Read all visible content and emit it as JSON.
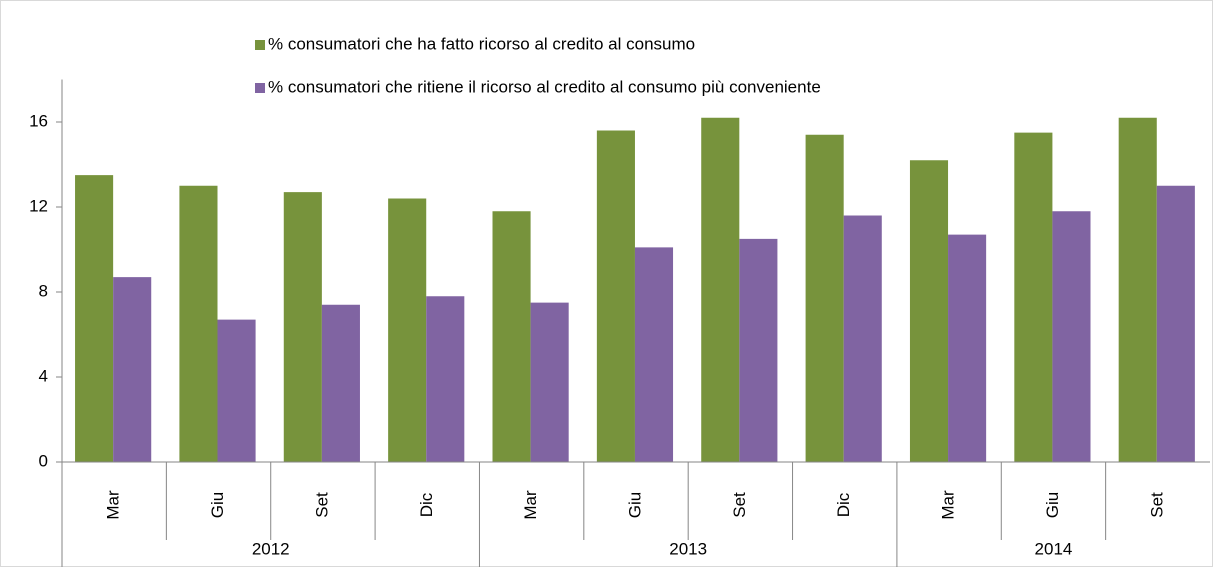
{
  "chart_data": {
    "type": "bar",
    "groups": [
      {
        "name": "2012",
        "categories": [
          "Mar",
          "Giu",
          "Set",
          "Dic"
        ]
      },
      {
        "name": "2013",
        "categories": [
          "Mar",
          "Giu",
          "Set",
          "Dic"
        ]
      },
      {
        "name": "2014",
        "categories": [
          "Mar",
          "Giu",
          "Set"
        ]
      }
    ],
    "series": [
      {
        "name": "% consumatori che ha fatto ricorso al credito al consumo",
        "color": "#77933c",
        "values": [
          13.5,
          13.0,
          12.7,
          12.4,
          11.8,
          15.6,
          16.2,
          15.4,
          14.2,
          15.5,
          16.2
        ]
      },
      {
        "name": "% consumatori che ritiene il ricorso al credito al consumo più conveniente",
        "color": "#8064a2",
        "values": [
          8.7,
          6.7,
          7.4,
          7.8,
          7.5,
          10.1,
          10.5,
          11.6,
          10.7,
          11.8,
          13.0
        ]
      }
    ],
    "ylim": [
      0,
      18
    ],
    "yticks": [
      0,
      4,
      8,
      12,
      16
    ]
  }
}
